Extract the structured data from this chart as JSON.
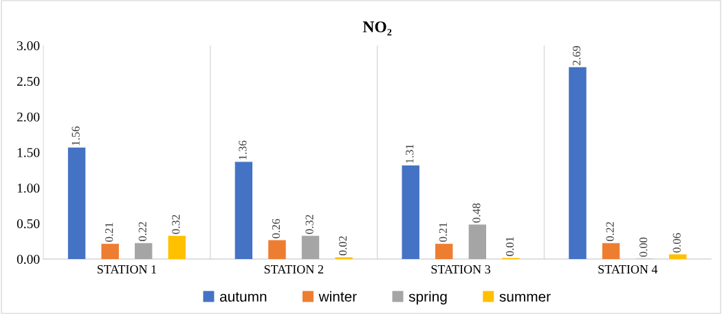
{
  "chart_data": {
    "type": "bar",
    "title": "NO₂",
    "categories": [
      "STATION 1",
      "STATION 2",
      "STATION 3",
      "STATION 4"
    ],
    "series": [
      {
        "name": "autumn",
        "color": "#4472c4",
        "values": [
          1.56,
          1.36,
          1.31,
          2.69
        ],
        "value_labels": [
          "1.56",
          "1.36",
          "1.31",
          "2.69"
        ]
      },
      {
        "name": "winter",
        "color": "#ed7d31",
        "values": [
          0.21,
          0.26,
          0.21,
          0.22
        ],
        "value_labels": [
          "0.21",
          "0.26",
          "0.21",
          "0.22"
        ]
      },
      {
        "name": "spring",
        "color": "#a5a5a5",
        "values": [
          0.22,
          0.32,
          0.48,
          0.0
        ],
        "value_labels": [
          "0.22",
          "0.32",
          "0.48",
          "0.00"
        ]
      },
      {
        "name": "summer",
        "color": "#ffc000",
        "values": [
          0.32,
          0.02,
          0.01,
          0.06
        ],
        "value_labels": [
          "0.32",
          "0.02",
          "0.01",
          "0.06"
        ]
      }
    ],
    "ylim": [
      0,
      3
    ],
    "yticks": [
      {
        "value": 0,
        "label": "0.00"
      },
      {
        "value": 0.5,
        "label": "0.50"
      },
      {
        "value": 1,
        "label": "1.00"
      },
      {
        "value": 1.5,
        "label": "1.50"
      },
      {
        "value": 2,
        "label": "2.00"
      },
      {
        "value": 2.5,
        "label": "2.50"
      },
      {
        "value": 3,
        "label": "3.00"
      }
    ],
    "grid": "x",
    "legend": "bottom"
  }
}
